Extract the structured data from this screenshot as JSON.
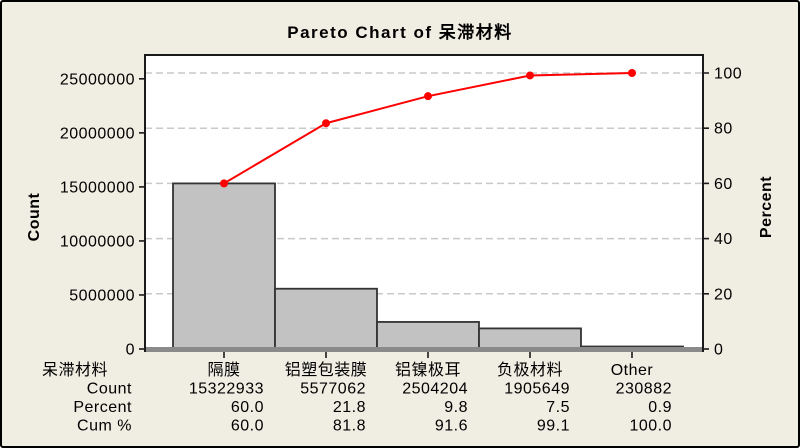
{
  "title": "Pareto Chart of 呆滞材料",
  "colors": {
    "background": "#f0ede2",
    "plot_background": "#ffffff",
    "bar_fill": "#c2c2c2",
    "bar_stroke": "#333333",
    "line": "#ff0000",
    "marker": "#ff0000",
    "grid": "#c9c9c9",
    "axis_border": "#1a1a1a",
    "baseline_band": "#8a8a8a",
    "text": "#000000"
  },
  "chart_data": {
    "type": "bar",
    "subtype": "pareto (bars + cumulative line)",
    "title": "Pareto Chart of 呆滞材料",
    "categories": [
      "隔膜",
      "铝塑包装膜",
      "铝镍极耳",
      "负极材料",
      "Other"
    ],
    "series": [
      {
        "name": "Count",
        "type": "bar",
        "values": [
          15322933,
          5577062,
          2504204,
          1905649,
          230882
        ]
      },
      {
        "name": "Cum %",
        "type": "line",
        "values": [
          60.0,
          81.8,
          91.6,
          99.1,
          100.0
        ]
      }
    ],
    "left_axis": {
      "label": "Count",
      "ticks": [
        0,
        5000000,
        10000000,
        15000000,
        20000000,
        25000000
      ],
      "range": [
        0,
        25540730
      ]
    },
    "right_axis": {
      "label": "Percent",
      "ticks": [
        0,
        20,
        40,
        60,
        80,
        100
      ],
      "range": [
        0,
        100
      ]
    },
    "grid": {
      "style": "dashed-horizontal",
      "at_percent": [
        20,
        40,
        60,
        80,
        100
      ]
    },
    "legend_position": "none",
    "table": {
      "rows": [
        {
          "label": "呆滞材料",
          "align": "center",
          "values": [
            "隔膜",
            "铝塑包装膜",
            "铝镍极耳",
            "负极材料",
            "Other"
          ]
        },
        {
          "label": "Count",
          "align": "right",
          "values": [
            "15322933",
            "5577062",
            "2504204",
            "1905649",
            "230882"
          ]
        },
        {
          "label": "Percent",
          "align": "right",
          "values": [
            "60.0",
            "21.8",
            "9.8",
            "7.5",
            "0.9"
          ]
        },
        {
          "label": "Cum %",
          "align": "right",
          "values": [
            "60.0",
            "81.8",
            "91.6",
            "99.1",
            "100.0"
          ]
        }
      ]
    }
  }
}
